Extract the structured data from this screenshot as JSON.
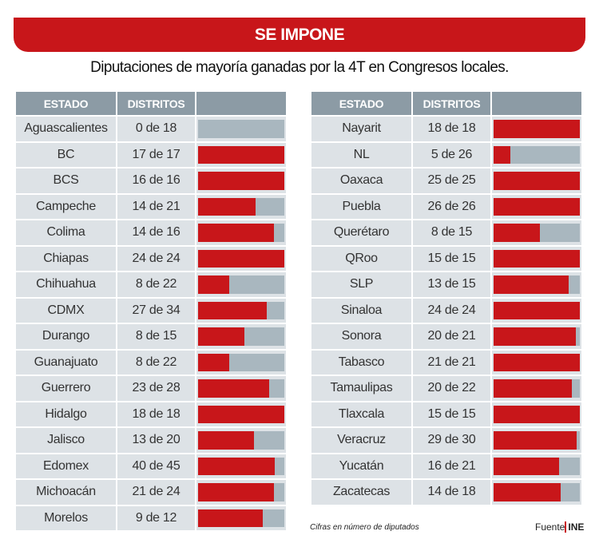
{
  "header": {
    "title": "SE IMPONE",
    "subtitle": "Diputaciones de mayoría ganadas por la 4T en Congresos locales."
  },
  "colors": {
    "won": "#c8161a",
    "total": "#a9b7bf",
    "header": "#8c9ba5",
    "cell": "#dde2e6"
  },
  "chart_data": {
    "type": "table",
    "columns": [
      "ESTADO",
      "DISTRITOS",
      ""
    ],
    "tables": [
      [
        [
          "Aguascalientes",
          "0 de 18",
          0,
          18
        ],
        [
          "BC",
          "17 de 17",
          17,
          17
        ],
        [
          "BCS",
          "16 de 16",
          16,
          16
        ],
        [
          "Campeche",
          "14 de 21",
          14,
          21
        ],
        [
          "Colima",
          "14 de 16",
          14,
          16
        ],
        [
          "Chiapas",
          "24 de 24",
          24,
          24
        ],
        [
          "Chihuahua",
          "8 de 22",
          8,
          22
        ],
        [
          "CDMX",
          "27 de 34",
          27,
          34
        ],
        [
          "Durango",
          "8 de 15",
          8,
          15
        ],
        [
          "Guanajuato",
          "8 de 22",
          8,
          22
        ],
        [
          "Guerrero",
          "23 de 28",
          23,
          28
        ],
        [
          "Hidalgo",
          "18 de 18",
          18,
          18
        ],
        [
          "Jalisco",
          "13 de 20",
          13,
          20
        ],
        [
          "Edomex",
          "40 de 45",
          40,
          45
        ],
        [
          "Michoacán",
          "21 de 24",
          21,
          24
        ],
        [
          "Morelos",
          "9 de 12",
          9,
          12
        ]
      ],
      [
        [
          "Nayarit",
          "18 de 18",
          18,
          18
        ],
        [
          "NL",
          "5 de 26",
          5,
          26
        ],
        [
          "Oaxaca",
          "25 de 25",
          25,
          25
        ],
        [
          "Puebla",
          "26 de 26",
          26,
          26
        ],
        [
          "Querétaro",
          "8 de 15",
          8,
          15
        ],
        [
          "QRoo",
          "15 de 15",
          15,
          15
        ],
        [
          "SLP",
          "13 de 15",
          13,
          15
        ],
        [
          "Sinaloa",
          "24 de 24",
          24,
          24
        ],
        [
          "Sonora",
          "20 de 21",
          20,
          21
        ],
        [
          "Tabasco",
          "21 de 21",
          21,
          21
        ],
        [
          "Tamaulipas",
          "20 de 22",
          20,
          22
        ],
        [
          "Tlaxcala",
          "15 de 15",
          15,
          15
        ],
        [
          "Veracruz",
          "29 de 30",
          29,
          30
        ],
        [
          "Yucatán",
          "16 de 21",
          16,
          21
        ],
        [
          "Zacatecas",
          "14 de 18",
          14,
          18
        ]
      ]
    ]
  },
  "footer": {
    "note": "Cifras en número de diputados",
    "source_label": "Fuente",
    "source": "INE"
  }
}
